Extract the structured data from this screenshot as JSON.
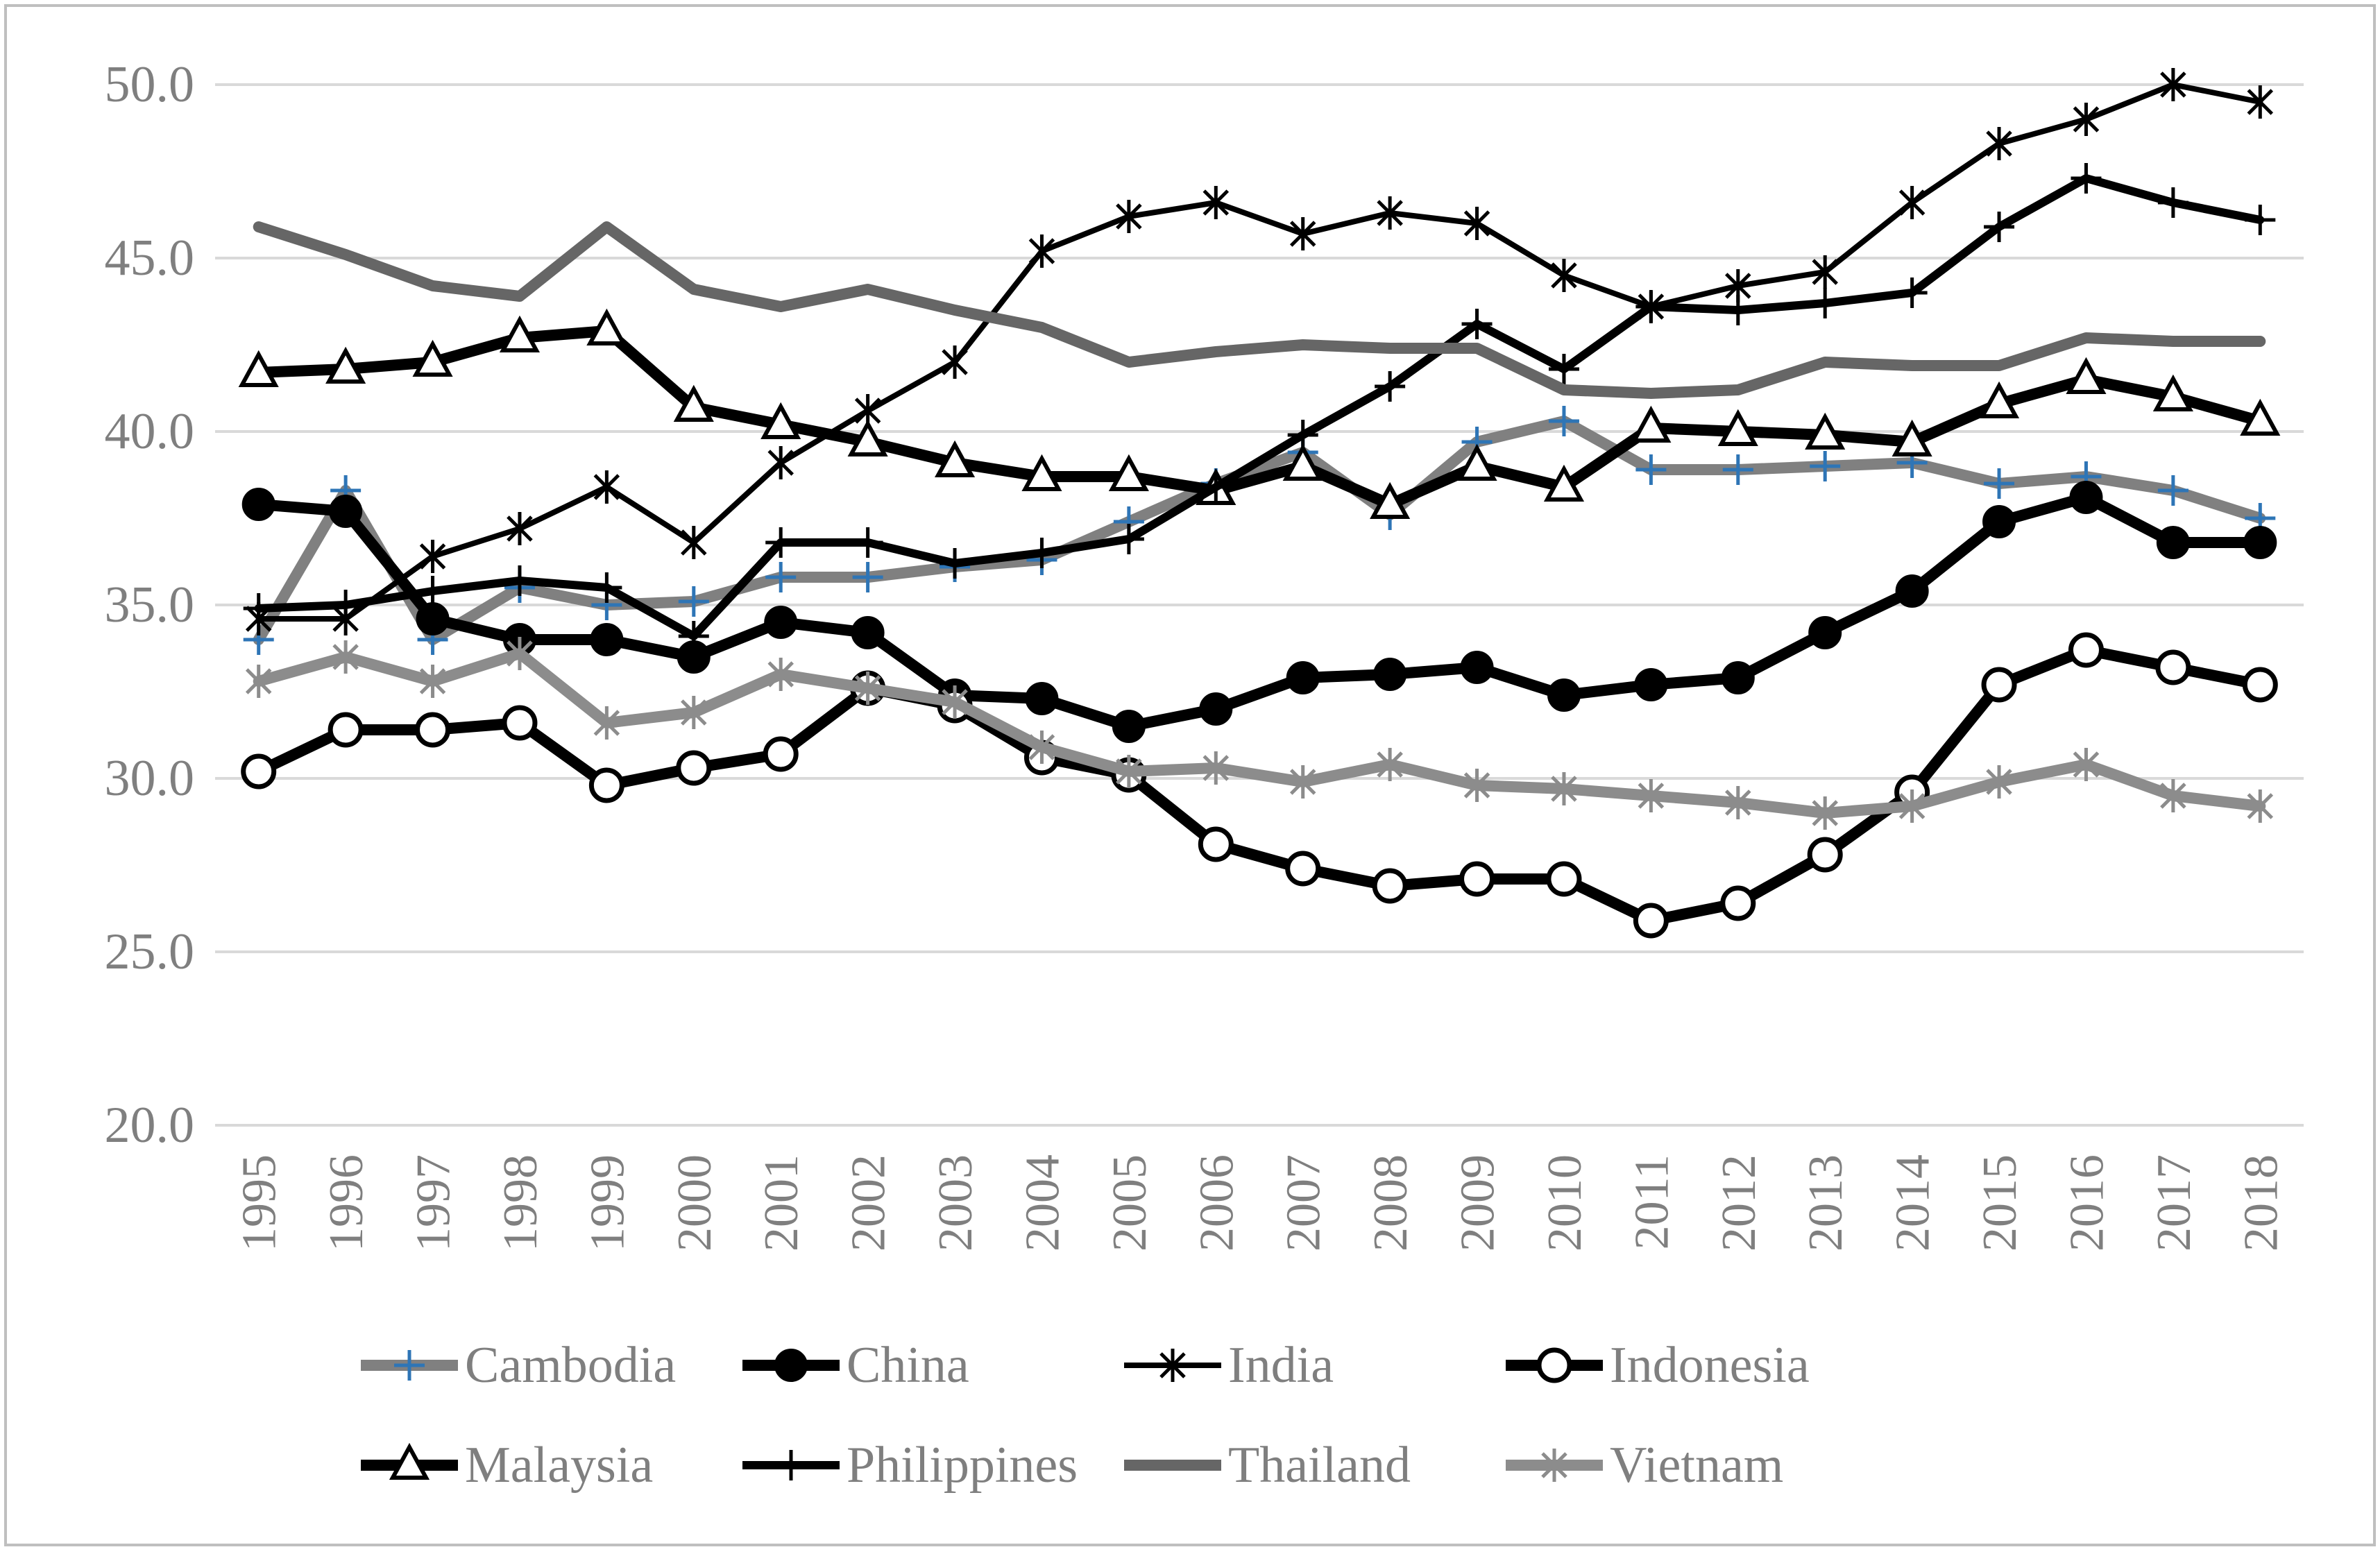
{
  "chart_data": {
    "type": "line",
    "title": "",
    "xlabel": "",
    "ylabel": "",
    "ylim": [
      20,
      50
    ],
    "yticks": [
      "20.0",
      "25.0",
      "30.0",
      "35.0",
      "40.0",
      "45.0",
      "50.0"
    ],
    "ytick_values": [
      20,
      25,
      30,
      35,
      40,
      45,
      50
    ],
    "grid": true,
    "legend_position": "bottom",
    "categories": [
      "1995",
      "1996",
      "1997",
      "1998",
      "1999",
      "2000",
      "2001",
      "2002",
      "2003",
      "2004",
      "2005",
      "2006",
      "2007",
      "2008",
      "2009",
      "2010",
      "2011",
      "2012",
      "2013",
      "2014",
      "2015",
      "2016",
      "2017",
      "2018"
    ],
    "series": [
      {
        "name": "Cambodia",
        "marker": "plus-blue",
        "color": "#808080",
        "values": [
          34.0,
          38.3,
          34.0,
          35.5,
          35.0,
          35.1,
          35.8,
          35.8,
          36.1,
          36.3,
          37.4,
          38.5,
          39.4,
          37.6,
          39.7,
          40.3,
          38.9,
          38.9,
          39.0,
          39.1,
          38.5,
          38.7,
          38.3,
          37.5
        ]
      },
      {
        "name": "China",
        "marker": "filled-circle",
        "color": "#000000",
        "values": [
          37.9,
          37.7,
          34.6,
          34.0,
          34.0,
          33.5,
          34.5,
          34.2,
          32.4,
          32.3,
          31.5,
          32.0,
          32.9,
          33.0,
          33.2,
          32.4,
          32.7,
          32.9,
          34.2,
          35.4,
          37.4,
          38.1,
          36.8,
          36.8
        ]
      },
      {
        "name": "India",
        "marker": "asterisk",
        "color": "#000000",
        "values": [
          34.6,
          34.6,
          36.4,
          37.2,
          38.4,
          36.8,
          39.1,
          40.6,
          42.0,
          45.2,
          46.2,
          46.6,
          45.7,
          46.3,
          46.0,
          44.5,
          43.6,
          44.2,
          44.6,
          46.6,
          48.3,
          49.0,
          50.0,
          49.5
        ]
      },
      {
        "name": "Indonesia",
        "marker": "open-circle",
        "color": "#000000",
        "values": [
          30.2,
          31.4,
          31.4,
          31.6,
          29.8,
          30.3,
          30.7,
          32.6,
          32.1,
          30.6,
          30.1,
          28.1,
          27.4,
          26.9,
          27.1,
          27.1,
          25.9,
          26.4,
          27.8,
          29.6,
          32.7,
          33.7,
          33.2,
          32.7
        ]
      },
      {
        "name": "Malaysia",
        "marker": "open-triangle",
        "color": "#000000",
        "values": [
          41.7,
          41.8,
          42.0,
          42.7,
          42.9,
          40.7,
          40.2,
          39.7,
          39.1,
          38.7,
          38.7,
          38.3,
          39.0,
          37.9,
          39.0,
          38.4,
          40.1,
          40.0,
          39.9,
          39.7,
          40.8,
          41.5,
          41.0,
          40.3
        ]
      },
      {
        "name": "Philippines",
        "marker": "plus-black",
        "color": "#000000",
        "values": [
          34.9,
          35.0,
          35.4,
          35.7,
          35.5,
          34.1,
          36.8,
          36.8,
          36.2,
          36.5,
          36.9,
          38.4,
          39.9,
          41.3,
          43.1,
          41.8,
          43.6,
          43.5,
          43.7,
          44.0,
          45.9,
          47.3,
          46.6,
          46.1
        ]
      },
      {
        "name": "Thailand",
        "marker": "none",
        "color": "#666666",
        "values": [
          45.9,
          45.1,
          44.2,
          43.9,
          45.9,
          44.1,
          43.6,
          44.1,
          43.5,
          43.0,
          42.0,
          42.3,
          42.5,
          42.4,
          42.4,
          41.2,
          41.1,
          41.2,
          42.0,
          41.9,
          41.9,
          42.7,
          42.6,
          42.6
        ]
      },
      {
        "name": "Vietnam",
        "marker": "asterisk-gray",
        "color": "#8c8c8c",
        "values": [
          32.8,
          33.5,
          32.8,
          33.6,
          31.6,
          31.9,
          33.0,
          32.6,
          32.2,
          30.9,
          30.2,
          30.3,
          29.9,
          30.4,
          29.8,
          29.7,
          29.5,
          29.3,
          29.0,
          29.2,
          29.9,
          30.4,
          29.5,
          29.2
        ]
      }
    ]
  }
}
